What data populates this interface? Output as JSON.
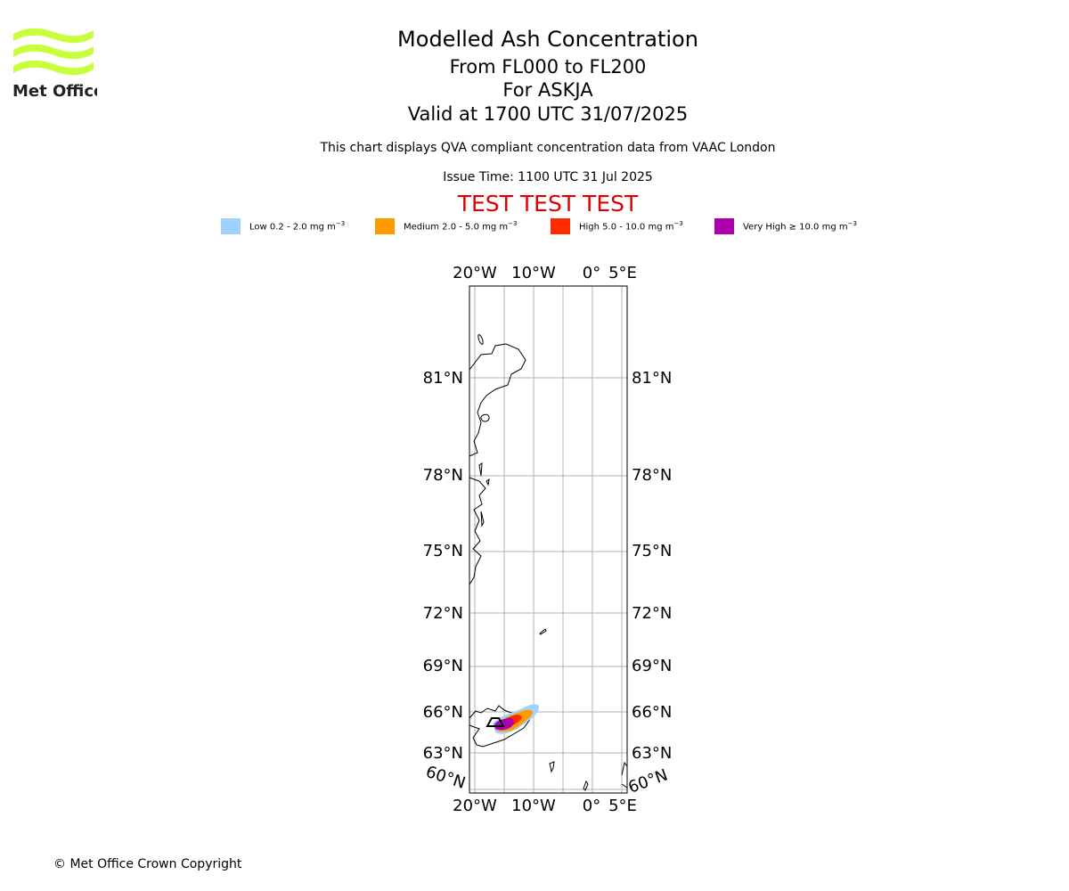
{
  "header": {
    "title": "Modelled Ash Concentration",
    "range": "From FL000 to FL200",
    "volcano": "For ASKJA",
    "valid": "Valid at 1700 UTC 31/07/2025",
    "description": "This chart displays QVA compliant concentration data from VAAC London",
    "issue_time": "Issue Time: 1100 UTC 31 Jul 2025",
    "test_banner": "TEST TEST TEST"
  },
  "logo": {
    "text": "Met Office",
    "icon": "met-office-waves-logo",
    "color": "#c8ff3c"
  },
  "legend": [
    {
      "prefix": "Low 0.2 - 2.0 mg m",
      "color": "#a0d2ff"
    },
    {
      "prefix": "Medium 2.0 - 5.0 mg m",
      "color": "#ff9a00"
    },
    {
      "prefix": "High 5.0 - 10.0 mg m",
      "color": "#ff2a00"
    },
    {
      "prefix": "Very High ≥ 10.0 mg m",
      "color": "#ac00ac"
    }
  ],
  "legend_unit_exponent": "−3",
  "map": {
    "lon_labels_top": [
      "20°W",
      "10°W",
      "0°",
      "5°E"
    ],
    "lon_labels_bottom": [
      "20°W",
      "10°W",
      "0°",
      "5°E"
    ],
    "lat_labels_left": [
      "81°N",
      "78°N",
      "75°N",
      "72°N",
      "69°N",
      "66°N",
      "63°N",
      "60°N"
    ],
    "lat_labels_right": [
      "81°N",
      "78°N",
      "75°N",
      "72°N",
      "69°N",
      "66°N",
      "63°N",
      "60°N"
    ],
    "grid_color": "#b0b0b0",
    "coast_color": "#000000"
  },
  "footer": {
    "copyright": "© Met Office Crown Copyright"
  }
}
